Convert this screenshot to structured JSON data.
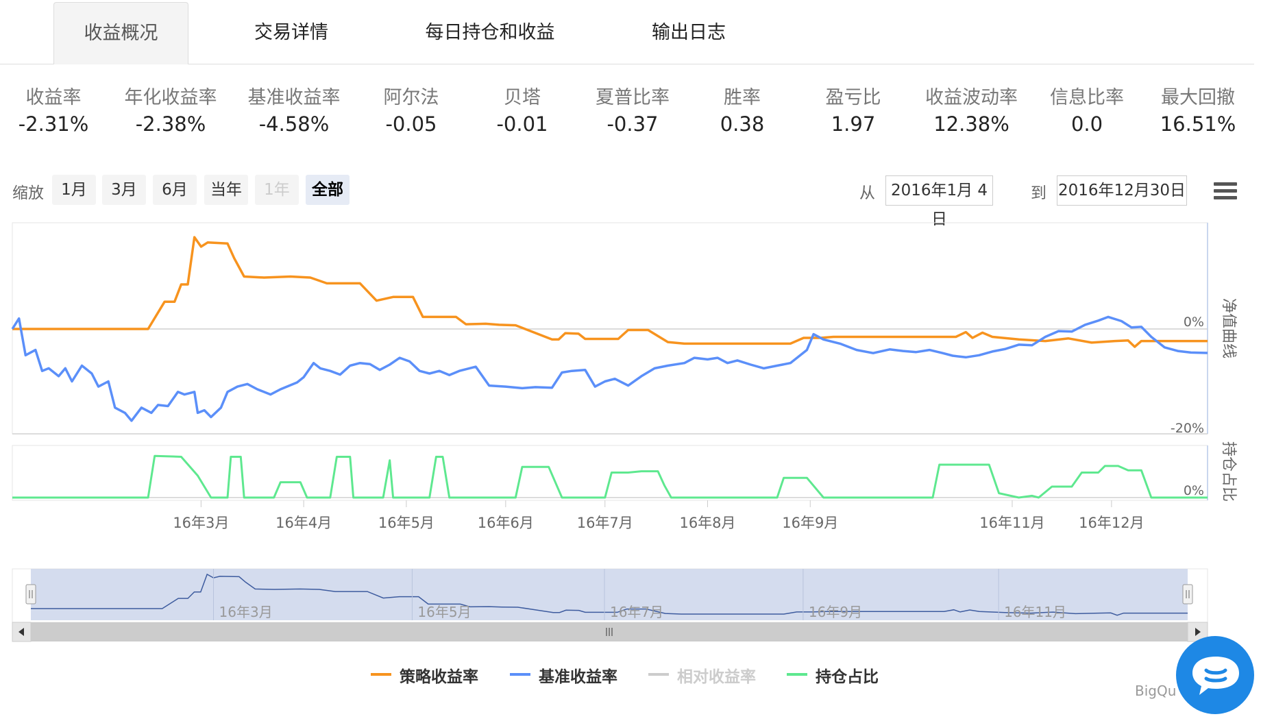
{
  "tabs": [
    {
      "label": "收益概况",
      "active": true
    },
    {
      "label": "交易详情",
      "active": false
    },
    {
      "label": "每日持仓和收益",
      "active": false
    },
    {
      "label": "输出日志",
      "active": false
    }
  ],
  "stats": [
    {
      "label": "收益率",
      "value": "-2.31%"
    },
    {
      "label": "年化收益率",
      "value": "-2.38%"
    },
    {
      "label": "基准收益率",
      "value": "-4.58%"
    },
    {
      "label": "阿尔法",
      "value": "-0.05"
    },
    {
      "label": "贝塔",
      "value": "-0.01"
    },
    {
      "label": "夏普比率",
      "value": "-0.37"
    },
    {
      "label": "胜率",
      "value": "0.38"
    },
    {
      "label": "盈亏比",
      "value": "1.97"
    },
    {
      "label": "收益波动率",
      "value": "12.38%"
    },
    {
      "label": "信息比率",
      "value": "0.0"
    },
    {
      "label": "最大回撤",
      "value": "16.51%"
    }
  ],
  "zoom": {
    "label": "缩放",
    "buttons": [
      {
        "label": "1月",
        "state": "normal"
      },
      {
        "label": "3月",
        "state": "normal"
      },
      {
        "label": "6月",
        "state": "normal"
      },
      {
        "label": "当年",
        "state": "normal"
      },
      {
        "label": "1年",
        "state": "disabled"
      },
      {
        "label": "全部",
        "state": "selected"
      }
    ]
  },
  "range": {
    "from_label": "从",
    "from_value": "2016年1月 4日",
    "to_label": "到",
    "to_value": "2016年12月30日"
  },
  "colors": {
    "strategy": "#f7931e",
    "benchmark": "#5b8ff9",
    "relative": "#cccccc",
    "position": "#5ee88f",
    "navigator": "#ccd6eb",
    "chat": "#1e88e5"
  },
  "legend": [
    {
      "label": "策略收益率",
      "color": "#f7931e",
      "enabled": true
    },
    {
      "label": "基准收益率",
      "color": "#5b8ff9",
      "enabled": true
    },
    {
      "label": "相对收益率",
      "color": "#cccccc",
      "enabled": false
    },
    {
      "label": "持仓占比",
      "color": "#5ee88f",
      "enabled": true
    }
  ],
  "credit": "BigQu",
  "chat_icon": "chat-bubble-icon",
  "menu_icon": "hamburger-menu-icon",
  "chart_data": {
    "type": "line",
    "x_range": [
      "2016-01-04",
      "2016-12-30"
    ],
    "x_ticks": [
      {
        "date": "2016-03-01",
        "label": "16年3月"
      },
      {
        "date": "2016-04-01",
        "label": "16年4月"
      },
      {
        "date": "2016-05-02",
        "label": "16年5月"
      },
      {
        "date": "2016-06-01",
        "label": "16年6月"
      },
      {
        "date": "2016-07-01",
        "label": "16年7月"
      },
      {
        "date": "2016-08-01",
        "label": "16年8月"
      },
      {
        "date": "2016-09-01",
        "label": "16年9月"
      },
      {
        "date": "2016-11-01",
        "label": "16年11月"
      },
      {
        "date": "2016-12-01",
        "label": "16年12月"
      }
    ],
    "navigator_ticks": [
      "16年3月",
      "16年5月",
      "16年7月",
      "16年9月",
      "16年11月"
    ],
    "panes": [
      {
        "axis_title": "净值曲线",
        "y_ticks": [
          "0%",
          "-20%"
        ],
        "ylim": [
          -20,
          20
        ]
      },
      {
        "axis_title": "持仓占比",
        "y_ticks": [
          "0%"
        ],
        "ylim": [
          0,
          100
        ]
      }
    ],
    "series": [
      {
        "name": "策略收益率",
        "pane": 0,
        "points": [
          [
            "2016-01-04",
            0
          ],
          [
            "2016-02-14",
            0
          ],
          [
            "2016-02-19",
            5.2
          ],
          [
            "2016-02-22",
            5.2
          ],
          [
            "2016-02-24",
            8.5
          ],
          [
            "2016-02-26",
            8.5
          ],
          [
            "2016-02-28",
            17.5
          ],
          [
            "2016-03-01",
            15.7
          ],
          [
            "2016-03-03",
            16.5
          ],
          [
            "2016-03-09",
            16.3
          ],
          [
            "2016-03-11",
            13.5
          ],
          [
            "2016-03-14",
            10
          ],
          [
            "2016-03-20",
            9.8
          ],
          [
            "2016-03-28",
            10
          ],
          [
            "2016-04-03",
            9.8
          ],
          [
            "2016-04-08",
            8.7
          ],
          [
            "2016-04-18",
            8.7
          ],
          [
            "2016-04-23",
            5.4
          ],
          [
            "2016-04-28",
            6.1
          ],
          [
            "2016-05-04",
            6.1
          ],
          [
            "2016-05-07",
            2.3
          ],
          [
            "2016-05-17",
            2.3
          ],
          [
            "2016-05-20",
            0.9
          ],
          [
            "2016-05-26",
            1
          ],
          [
            "2016-05-30",
            0.8
          ],
          [
            "2016-06-04",
            0.7
          ],
          [
            "2016-06-15",
            -2
          ],
          [
            "2016-06-17",
            -2
          ],
          [
            "2016-06-19",
            -0.8
          ],
          [
            "2016-06-23",
            -0.9
          ],
          [
            "2016-06-25",
            -1.9
          ],
          [
            "2016-07-05",
            -1.9
          ],
          [
            "2016-07-08",
            -0.2
          ],
          [
            "2016-07-14",
            -0.2
          ],
          [
            "2016-07-20",
            -2.5
          ],
          [
            "2016-07-25",
            -2.8
          ],
          [
            "2016-08-26",
            -2.8
          ],
          [
            "2016-08-30",
            -1.7
          ],
          [
            "2016-09-04",
            -1.7
          ],
          [
            "2016-09-08",
            -1.5
          ],
          [
            "2016-10-15",
            -1.5
          ],
          [
            "2016-10-18",
            -0.6
          ],
          [
            "2016-10-20",
            -1.7
          ],
          [
            "2016-10-23",
            -0.7
          ],
          [
            "2016-10-26",
            -1.5
          ],
          [
            "2016-11-03",
            -2
          ],
          [
            "2016-11-11",
            -2.3
          ],
          [
            "2016-11-18",
            -1.8
          ],
          [
            "2016-11-25",
            -2.6
          ],
          [
            "2016-12-02",
            -2.3
          ],
          [
            "2016-12-06",
            -2.2
          ],
          [
            "2016-12-08",
            -3.4
          ],
          [
            "2016-12-10",
            -2.3
          ],
          [
            "2016-12-30",
            -2.3
          ]
        ]
      },
      {
        "name": "基准收益率",
        "pane": 0,
        "points": [
          [
            "2016-01-04",
            0
          ],
          [
            "2016-01-06",
            2
          ],
          [
            "2016-01-08",
            -5
          ],
          [
            "2016-01-11",
            -4
          ],
          [
            "2016-01-13",
            -8
          ],
          [
            "2016-01-15",
            -7.5
          ],
          [
            "2016-01-18",
            -9
          ],
          [
            "2016-01-20",
            -7.5
          ],
          [
            "2016-01-22",
            -10
          ],
          [
            "2016-01-25",
            -7
          ],
          [
            "2016-01-28",
            -8.5
          ],
          [
            "2016-01-30",
            -11
          ],
          [
            "2016-02-02",
            -10
          ],
          [
            "2016-02-04",
            -15
          ],
          [
            "2016-02-07",
            -16
          ],
          [
            "2016-02-09",
            -17.5
          ],
          [
            "2016-02-12",
            -15
          ],
          [
            "2016-02-15",
            -16
          ],
          [
            "2016-02-17",
            -14.5
          ],
          [
            "2016-02-20",
            -14.7
          ],
          [
            "2016-02-23",
            -12
          ],
          [
            "2016-02-25",
            -12.5
          ],
          [
            "2016-02-28",
            -12
          ],
          [
            "2016-02-29",
            -16
          ],
          [
            "2016-03-02",
            -15.5
          ],
          [
            "2016-03-04",
            -16.8
          ],
          [
            "2016-03-07",
            -15
          ],
          [
            "2016-03-09",
            -12
          ],
          [
            "2016-03-12",
            -11
          ],
          [
            "2016-03-15",
            -10.5
          ],
          [
            "2016-03-18",
            -11.5
          ],
          [
            "2016-03-22",
            -12.5
          ],
          [
            "2016-03-25",
            -11.5
          ],
          [
            "2016-03-30",
            -10.2
          ],
          [
            "2016-04-01",
            -9.2
          ],
          [
            "2016-04-04",
            -6.5
          ],
          [
            "2016-04-06",
            -7.5
          ],
          [
            "2016-04-09",
            -8
          ],
          [
            "2016-04-12",
            -8.7
          ],
          [
            "2016-04-15",
            -7
          ],
          [
            "2016-04-18",
            -6.5
          ],
          [
            "2016-04-21",
            -6.7
          ],
          [
            "2016-04-24",
            -7.8
          ],
          [
            "2016-04-27",
            -6.8
          ],
          [
            "2016-04-30",
            -5.5
          ],
          [
            "2016-05-03",
            -6.2
          ],
          [
            "2016-05-06",
            -8
          ],
          [
            "2016-05-09",
            -8.5
          ],
          [
            "2016-05-12",
            -8
          ],
          [
            "2016-05-15",
            -8.8
          ],
          [
            "2016-05-18",
            -8
          ],
          [
            "2016-05-23",
            -7.2
          ],
          [
            "2016-05-27",
            -10.8
          ],
          [
            "2016-06-01",
            -11
          ],
          [
            "2016-06-06",
            -11.3
          ],
          [
            "2016-06-10",
            -11.1
          ],
          [
            "2016-06-15",
            -11.2
          ],
          [
            "2016-06-18",
            -8.3
          ],
          [
            "2016-06-21",
            -8
          ],
          [
            "2016-06-25",
            -7.8
          ],
          [
            "2016-06-28",
            -11
          ],
          [
            "2016-07-01",
            -10
          ],
          [
            "2016-07-04",
            -9.5
          ],
          [
            "2016-07-08",
            -10.8
          ],
          [
            "2016-07-12",
            -9
          ],
          [
            "2016-07-16",
            -7.5
          ],
          [
            "2016-07-20",
            -7
          ],
          [
            "2016-07-25",
            -6.5
          ],
          [
            "2016-07-28",
            -5.5
          ],
          [
            "2016-08-01",
            -5.8
          ],
          [
            "2016-08-04",
            -5.5
          ],
          [
            "2016-08-07",
            -6.5
          ],
          [
            "2016-08-10",
            -6
          ],
          [
            "2016-08-14",
            -6.8
          ],
          [
            "2016-08-18",
            -7.5
          ],
          [
            "2016-08-22",
            -7
          ],
          [
            "2016-08-26",
            -6.5
          ],
          [
            "2016-08-29",
            -5
          ],
          [
            "2016-08-31",
            -4
          ],
          [
            "2016-09-02",
            -1
          ],
          [
            "2016-09-05",
            -2
          ],
          [
            "2016-09-10",
            -2.8
          ],
          [
            "2016-09-15",
            -4
          ],
          [
            "2016-09-20",
            -4.6
          ],
          [
            "2016-09-25",
            -3.9
          ],
          [
            "2016-09-29",
            -4.2
          ],
          [
            "2016-10-03",
            -4.4
          ],
          [
            "2016-10-07",
            -4
          ],
          [
            "2016-10-11",
            -4.6
          ],
          [
            "2016-10-14",
            -5.1
          ],
          [
            "2016-10-18",
            -5.4
          ],
          [
            "2016-10-22",
            -5
          ],
          [
            "2016-10-26",
            -4.3
          ],
          [
            "2016-10-30",
            -3.8
          ],
          [
            "2016-11-03",
            -3
          ],
          [
            "2016-11-07",
            -3.1
          ],
          [
            "2016-11-11",
            -1.5
          ],
          [
            "2016-11-15",
            -0.4
          ],
          [
            "2016-11-19",
            -0.5
          ],
          [
            "2016-11-23",
            0.8
          ],
          [
            "2016-11-27",
            1.6
          ],
          [
            "2016-11-30",
            2.3
          ],
          [
            "2016-12-04",
            1.5
          ],
          [
            "2016-12-07",
            0.3
          ],
          [
            "2016-12-10",
            0.4
          ],
          [
            "2016-12-13",
            -1.5
          ],
          [
            "2016-12-17",
            -3.5
          ],
          [
            "2016-12-21",
            -4.2
          ],
          [
            "2016-12-25",
            -4.5
          ],
          [
            "2016-12-30",
            -4.58
          ]
        ]
      },
      {
        "name": "持仓占比",
        "pane": 1,
        "points": [
          [
            "2016-01-04",
            0
          ],
          [
            "2016-02-14",
            0
          ],
          [
            "2016-02-16",
            95
          ],
          [
            "2016-02-24",
            93
          ],
          [
            "2016-02-29",
            50
          ],
          [
            "2016-03-04",
            0
          ],
          [
            "2016-03-09",
            0
          ],
          [
            "2016-03-10",
            93
          ],
          [
            "2016-03-13",
            93
          ],
          [
            "2016-03-14",
            0
          ],
          [
            "2016-03-23",
            0
          ],
          [
            "2016-03-25",
            35
          ],
          [
            "2016-03-31",
            35
          ],
          [
            "2016-04-02",
            0
          ],
          [
            "2016-04-09",
            0
          ],
          [
            "2016-04-11",
            93
          ],
          [
            "2016-04-15",
            93
          ],
          [
            "2016-04-16",
            0
          ],
          [
            "2016-04-25",
            0
          ],
          [
            "2016-04-27",
            85
          ],
          [
            "2016-04-28",
            0
          ],
          [
            "2016-05-09",
            0
          ],
          [
            "2016-05-11",
            93
          ],
          [
            "2016-05-13",
            93
          ],
          [
            "2016-05-15",
            0
          ],
          [
            "2016-06-04",
            0
          ],
          [
            "2016-06-06",
            70
          ],
          [
            "2016-06-14",
            70
          ],
          [
            "2016-06-18",
            0
          ],
          [
            "2016-07-01",
            0
          ],
          [
            "2016-07-03",
            57
          ],
          [
            "2016-07-08",
            57
          ],
          [
            "2016-07-12",
            60
          ],
          [
            "2016-07-17",
            60
          ],
          [
            "2016-07-19",
            27
          ],
          [
            "2016-07-21",
            0
          ],
          [
            "2016-08-22",
            0
          ],
          [
            "2016-08-24",
            45
          ],
          [
            "2016-08-31",
            45
          ],
          [
            "2016-09-05",
            0
          ],
          [
            "2016-10-08",
            0
          ],
          [
            "2016-10-10",
            75
          ],
          [
            "2016-10-16",
            75
          ],
          [
            "2016-10-19",
            75
          ],
          [
            "2016-10-25",
            75
          ],
          [
            "2016-10-28",
            10
          ],
          [
            "2016-11-03",
            0
          ],
          [
            "2016-11-07",
            4
          ],
          [
            "2016-11-09",
            0
          ],
          [
            "2016-11-13",
            25
          ],
          [
            "2016-11-19",
            25
          ],
          [
            "2016-11-22",
            57
          ],
          [
            "2016-11-27",
            57
          ],
          [
            "2016-11-29",
            72
          ],
          [
            "2016-12-03",
            72
          ],
          [
            "2016-12-06",
            62
          ],
          [
            "2016-12-10",
            62
          ],
          [
            "2016-12-13",
            0
          ],
          [
            "2016-12-30",
            0
          ]
        ]
      }
    ]
  }
}
